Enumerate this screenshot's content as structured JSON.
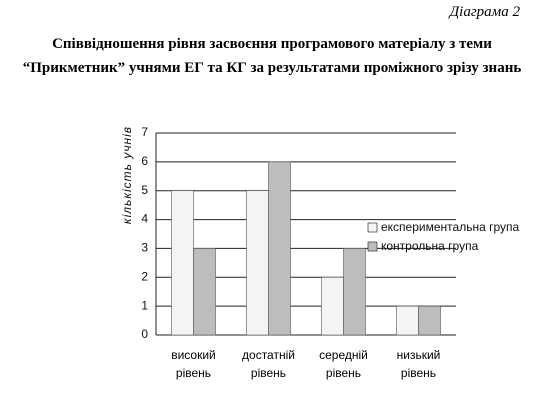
{
  "header": "Діаграма 2",
  "chart_data": {
    "type": "bar",
    "title": "Співвідношення рівня засвоєння програмового матеріалу з теми “Прикметник” учнями ЕГ та КГ за результатами проміжного зрізу знань",
    "y_label": "кількість учнів",
    "categories": [
      "високий рівень",
      "достатній рівень",
      "середній рівень",
      "низький рівень"
    ],
    "series": [
      {
        "name": "експериментальна група",
        "color": "#f4f4f4",
        "values": [
          5,
          5,
          2,
          1
        ]
      },
      {
        "name": "контрольна група",
        "color": "#bdbdbd",
        "values": [
          3,
          6,
          3,
          1
        ]
      }
    ],
    "ylim": [
      0,
      7
    ],
    "yticks": [
      0,
      1,
      2,
      3,
      4,
      5,
      6,
      7
    ],
    "grid": true,
    "legend": "right"
  }
}
